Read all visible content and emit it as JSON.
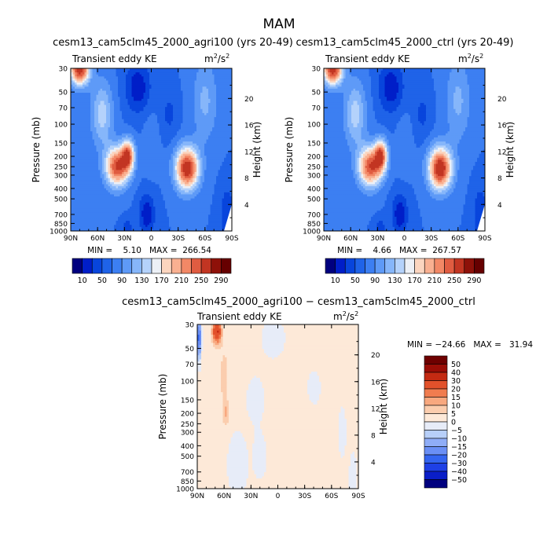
{
  "page_title": "MAM",
  "chart_data": [
    {
      "type": "heatmap",
      "title": "cesm13_cam5clm45_2000_agri100 (yrs 20-49)",
      "subtitle": "Transient eddy KE",
      "units": "m²/s²",
      "units_base": "m",
      "units_sup": "2",
      "units_mid": "/s",
      "units_sup2": "2",
      "ylabel": "Pressure (mb)",
      "y2label": "Height (km)",
      "x_ticks": [
        "90N",
        "60N",
        "30N",
        "0",
        "30S",
        "60S",
        "90S"
      ],
      "x_range": [
        90,
        -90
      ],
      "y_ticks": [
        "30",
        "50",
        "70",
        "100",
        "150",
        "200",
        "250",
        "300",
        "400",
        "500",
        "700",
        "850",
        "1000"
      ],
      "y_range": [
        1000,
        30
      ],
      "y_scale": "log",
      "y2_ticks": [
        "4",
        "8",
        "12",
        "16",
        "20"
      ],
      "min_text": "MIN =    5.10   MAX =  266.54",
      "color_levels": [
        10,
        30,
        50,
        70,
        90,
        110,
        130,
        150,
        170,
        190,
        210,
        230,
        250,
        270,
        290
      ],
      "colorbar_labels": [
        "10",
        "50",
        "90",
        "130",
        "170",
        "210",
        "250",
        "290"
      ],
      "features": [
        {
          "kind": "jet",
          "lat": 38,
          "p": 250,
          "value": 265
        },
        {
          "kind": "jet",
          "lat": 27,
          "p": 200,
          "value": 220
        },
        {
          "kind": "jet",
          "lat": -40,
          "p": 260,
          "value": 265
        },
        {
          "kind": "polar-vortex",
          "lat": 80,
          "p": 30,
          "value": 260
        },
        {
          "kind": "minimum",
          "lat": 15,
          "p": 40,
          "value": 5
        },
        {
          "kind": "minimum",
          "lat": 27,
          "p": 1000,
          "value": 5
        }
      ]
    },
    {
      "type": "heatmap",
      "title": "cesm13_cam5clm45_2000_ctrl (yrs 20-49)",
      "subtitle": "Transient eddy KE",
      "units": "m²/s²",
      "units_base": "m",
      "units_sup": "2",
      "units_mid": "/s",
      "units_sup2": "2",
      "ylabel": "Pressure (mb)",
      "y2label": "Height (km)",
      "x_ticks": [
        "90N",
        "60N",
        "30N",
        "0",
        "30S",
        "60S",
        "90S"
      ],
      "x_range": [
        90,
        -90
      ],
      "y_ticks": [
        "30",
        "50",
        "70",
        "100",
        "150",
        "200",
        "250",
        "300",
        "400",
        "500",
        "700",
        "850",
        "1000"
      ],
      "y_range": [
        1000,
        30
      ],
      "y_scale": "log",
      "y2_ticks": [
        "4",
        "8",
        "12",
        "16",
        "20"
      ],
      "min_text": "MIN =    4.66   MAX =  267.57",
      "color_levels": [
        10,
        30,
        50,
        70,
        90,
        110,
        130,
        150,
        170,
        190,
        210,
        230,
        250,
        270,
        290
      ],
      "colorbar_labels": [
        "10",
        "50",
        "90",
        "130",
        "170",
        "210",
        "250",
        "290"
      ],
      "features": [
        {
          "kind": "jet",
          "lat": 38,
          "p": 250,
          "value": 262
        },
        {
          "kind": "jet",
          "lat": 27,
          "p": 200,
          "value": 220
        },
        {
          "kind": "jet",
          "lat": -40,
          "p": 260,
          "value": 268
        },
        {
          "kind": "polar-vortex",
          "lat": 80,
          "p": 30,
          "value": 258
        },
        {
          "kind": "minimum",
          "lat": 15,
          "p": 40,
          "value": 5
        },
        {
          "kind": "minimum",
          "lat": 27,
          "p": 1000,
          "value": 5
        }
      ]
    },
    {
      "type": "heatmap",
      "title": "cesm13_cam5clm45_2000_agri100 − cesm13_cam5clm45_2000_ctrl",
      "subtitle": "Transient eddy KE",
      "units": "m²/s²",
      "units_base": "m",
      "units_sup": "2",
      "units_mid": "/s",
      "units_sup2": "2",
      "ylabel": "Pressure (mb)",
      "y2label": "Height (km)",
      "x_ticks": [
        "90N",
        "60N",
        "30N",
        "0",
        "30S",
        "60S",
        "90S"
      ],
      "x_range": [
        90,
        -90
      ],
      "y_ticks": [
        "30",
        "50",
        "70",
        "100",
        "150",
        "200",
        "250",
        "300",
        "400",
        "500",
        "700",
        "850",
        "1000"
      ],
      "y_range": [
        1000,
        30
      ],
      "y_scale": "log",
      "y2_ticks": [
        "4",
        "8",
        "12",
        "16",
        "20"
      ],
      "min_text": "MIN = −24.66   MAX =   31.94",
      "color_levels": [
        -50,
        -40,
        -30,
        -20,
        -15,
        -10,
        -5,
        0,
        5,
        10,
        15,
        20,
        30,
        40,
        50
      ],
      "colorbar_labels": [
        "50",
        "40",
        "30",
        "20",
        "15",
        "10",
        "5",
        "0",
        "−5",
        "−10",
        "−15",
        "−20",
        "−30",
        "−40",
        "−50"
      ],
      "features": [
        {
          "kind": "maximum",
          "lat": 68,
          "p": 40,
          "value": 31.94
        },
        {
          "kind": "minimum",
          "lat": 88,
          "p": 40,
          "value": -24.66
        },
        {
          "kind": "positive-band",
          "lat": 55,
          "p": 200,
          "value": 12
        }
      ]
    }
  ],
  "colors": {
    "kinetic_energy_palette": [
      "#00007f",
      "#001ec8",
      "#0845dc",
      "#1f63e8",
      "#3c7ff2",
      "#5e9af7",
      "#86b6fa",
      "#b4d2fb",
      "#ecf0f6",
      "#fbd5bf",
      "#f9b091",
      "#f28866",
      "#e05c41",
      "#c23522",
      "#8e1109",
      "#660000"
    ],
    "difference_palette": [
      "#00007f",
      "#0a1ec8",
      "#1e40e6",
      "#3465f0",
      "#6a8ff5",
      "#8fadf7",
      "#b7cff9",
      "#e7ecf8",
      "#fde9d8",
      "#fbcdae",
      "#f8a87f",
      "#f07c4f",
      "#e2512b",
      "#c42a12",
      "#9a0d06",
      "#6e0000"
    ]
  }
}
